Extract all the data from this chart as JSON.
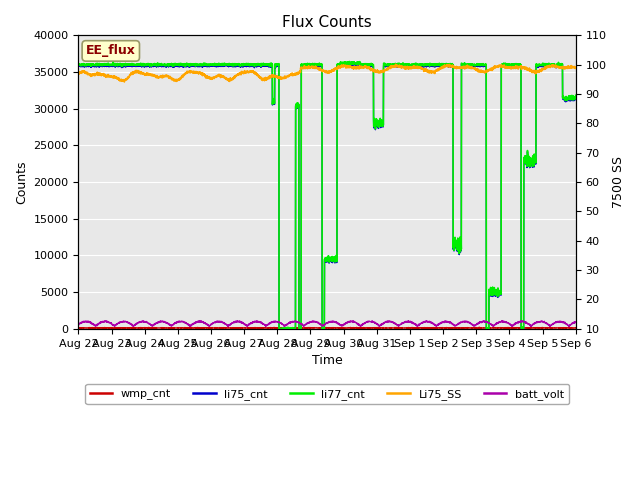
{
  "title": "Flux Counts",
  "xlabel": "Time",
  "ylabel_left": "Counts",
  "ylabel_right": "7500 SS",
  "annotation_text": "EE_flux",
  "annotation_color": "#8B0000",
  "annotation_bg": "#FFFFCC",
  "annotation_border": "#999966",
  "background_color": "#E8E8E8",
  "ylim_left": [
    0,
    40000
  ],
  "ylim_right": [
    10,
    110
  ],
  "yticks_left": [
    0,
    5000,
    10000,
    15000,
    20000,
    25000,
    30000,
    35000,
    40000
  ],
  "yticks_right": [
    10,
    20,
    30,
    40,
    50,
    60,
    70,
    80,
    90,
    100,
    110
  ],
  "xtick_labels": [
    "Aug 22",
    "Aug 23",
    "Aug 24",
    "Aug 25",
    "Aug 26",
    "Aug 27",
    "Aug 28",
    "Aug 29",
    "Aug 30",
    "Aug 31",
    "Sep 1",
    "Sep 2",
    "Sep 3",
    "Sep 4",
    "Sep 5",
    "Sep 6"
  ],
  "series": {
    "wmp_cnt": {
      "color": "#CC0000",
      "linewidth": 1.0
    },
    "li75_cnt": {
      "color": "#0000CC",
      "linewidth": 1.0
    },
    "li77_cnt": {
      "color": "#00EE00",
      "linewidth": 1.2
    },
    "Li75_SS": {
      "color": "#FFA500",
      "linewidth": 1.2
    },
    "batt_volt": {
      "color": "#AA00AA",
      "linewidth": 1.0
    }
  },
  "legend_entries": [
    {
      "label": "wmp_cnt",
      "color": "#CC0000"
    },
    {
      "label": "li75_cnt",
      "color": "#0000CC"
    },
    {
      "label": "li77_cnt",
      "color": "#00EE00"
    },
    {
      "label": "Li75_SS",
      "color": "#FFA500"
    },
    {
      "label": "batt_volt",
      "color": "#AA00AA"
    }
  ],
  "title_fontsize": 11,
  "axis_label_fontsize": 9,
  "tick_fontsize": 8,
  "figsize": [
    6.4,
    4.8
  ],
  "dpi": 100
}
